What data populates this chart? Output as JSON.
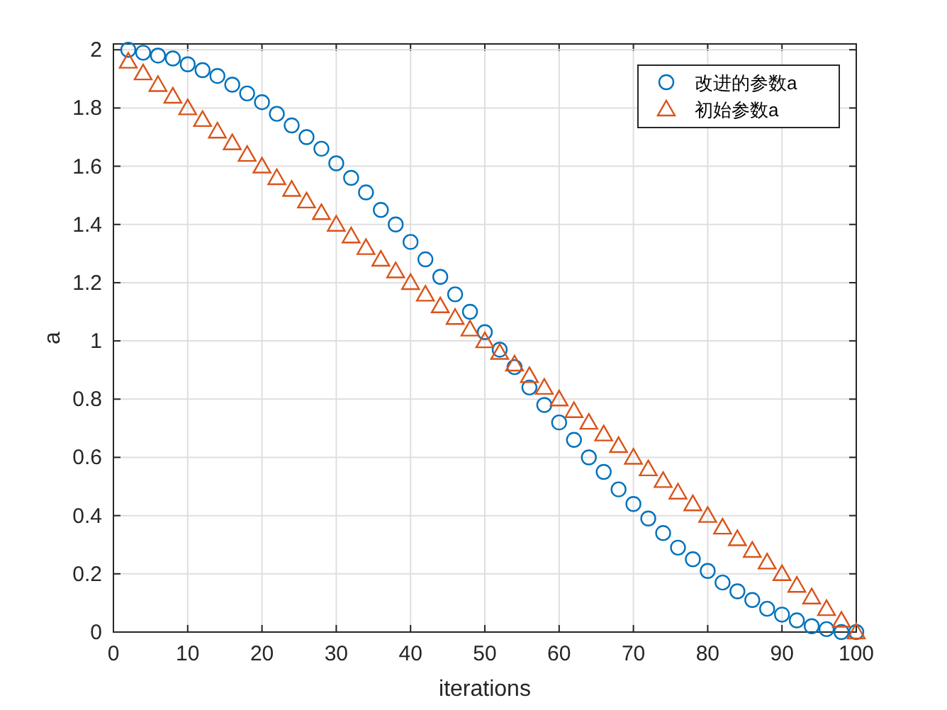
{
  "chart_data": {
    "type": "scatter",
    "xlabel": "iterations",
    "ylabel": "a",
    "x": [
      2,
      4,
      6,
      8,
      10,
      12,
      14,
      16,
      18,
      20,
      22,
      24,
      26,
      28,
      30,
      32,
      34,
      36,
      38,
      40,
      42,
      44,
      46,
      48,
      50,
      52,
      54,
      56,
      58,
      60,
      62,
      64,
      66,
      68,
      70,
      72,
      74,
      76,
      78,
      80,
      82,
      84,
      86,
      88,
      90,
      92,
      94,
      96,
      98,
      100
    ],
    "series": [
      {
        "name": "改进的参数a",
        "color": "#0072bd",
        "marker": "circle",
        "values": [
          2.0,
          1.99,
          1.98,
          1.97,
          1.95,
          1.93,
          1.91,
          1.88,
          1.85,
          1.82,
          1.78,
          1.74,
          1.7,
          1.66,
          1.61,
          1.56,
          1.51,
          1.45,
          1.4,
          1.34,
          1.28,
          1.22,
          1.16,
          1.1,
          1.03,
          0.97,
          0.91,
          0.84,
          0.78,
          0.72,
          0.66,
          0.6,
          0.55,
          0.49,
          0.44,
          0.39,
          0.34,
          0.29,
          0.25,
          0.21,
          0.17,
          0.14,
          0.11,
          0.08,
          0.06,
          0.04,
          0.02,
          0.01,
          0.0,
          0.0
        ]
      },
      {
        "name": "初始参数a",
        "color": "#d95319",
        "marker": "triangle",
        "values": [
          1.96,
          1.92,
          1.88,
          1.84,
          1.8,
          1.76,
          1.72,
          1.68,
          1.64,
          1.6,
          1.56,
          1.52,
          1.48,
          1.44,
          1.4,
          1.36,
          1.32,
          1.28,
          1.24,
          1.2,
          1.16,
          1.12,
          1.08,
          1.04,
          1.0,
          0.96,
          0.92,
          0.88,
          0.84,
          0.8,
          0.76,
          0.72,
          0.68,
          0.64,
          0.6,
          0.56,
          0.52,
          0.48,
          0.44,
          0.4,
          0.36,
          0.32,
          0.28,
          0.24,
          0.2,
          0.16,
          0.12,
          0.08,
          0.04,
          0.0
        ]
      }
    ],
    "xlim": [
      0,
      100
    ],
    "xticks": [
      0,
      10,
      20,
      30,
      40,
      50,
      60,
      70,
      80,
      90,
      100
    ],
    "ylim": [
      0,
      2.02
    ],
    "yticks": [
      0,
      0.2,
      0.4,
      0.6,
      0.8,
      1,
      1.2,
      1.4,
      1.6,
      1.8,
      2
    ],
    "grid": true,
    "legend": "top right"
  }
}
